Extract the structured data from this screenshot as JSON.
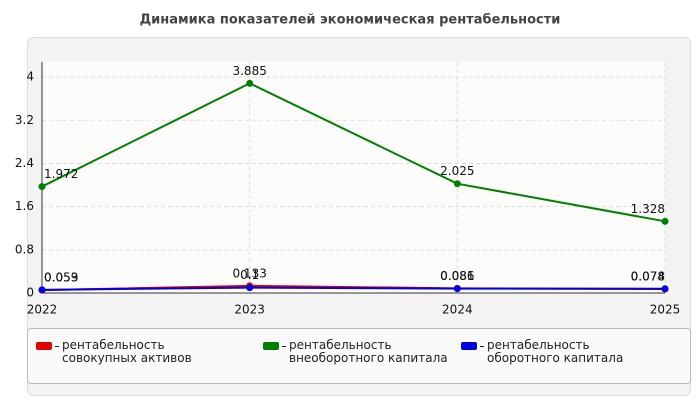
{
  "chart_data": {
    "type": "line",
    "title": "Динамика показателей экономическая рентабельности",
    "categories": [
      "2022",
      "2023",
      "2024",
      "2025"
    ],
    "series": [
      {
        "name": "рентабельность совокупных активов",
        "color": "#e00000",
        "values": [
          0.053,
          0.133,
          0.086,
          0.074
        ]
      },
      {
        "name": "рентабельность внеоборотного капитала",
        "color": "#008000",
        "values": [
          1.972,
          3.885,
          2.025,
          1.328
        ]
      },
      {
        "name": "рентабельность оборотного капитала",
        "color": "#0000e0",
        "values": [
          0.059,
          0.1,
          0.081,
          0.078
        ]
      }
    ],
    "ylim": [
      0,
      4.28
    ],
    "yticks": [
      0,
      0.8,
      1.6,
      2.4,
      3.2,
      4
    ],
    "grid": true
  }
}
